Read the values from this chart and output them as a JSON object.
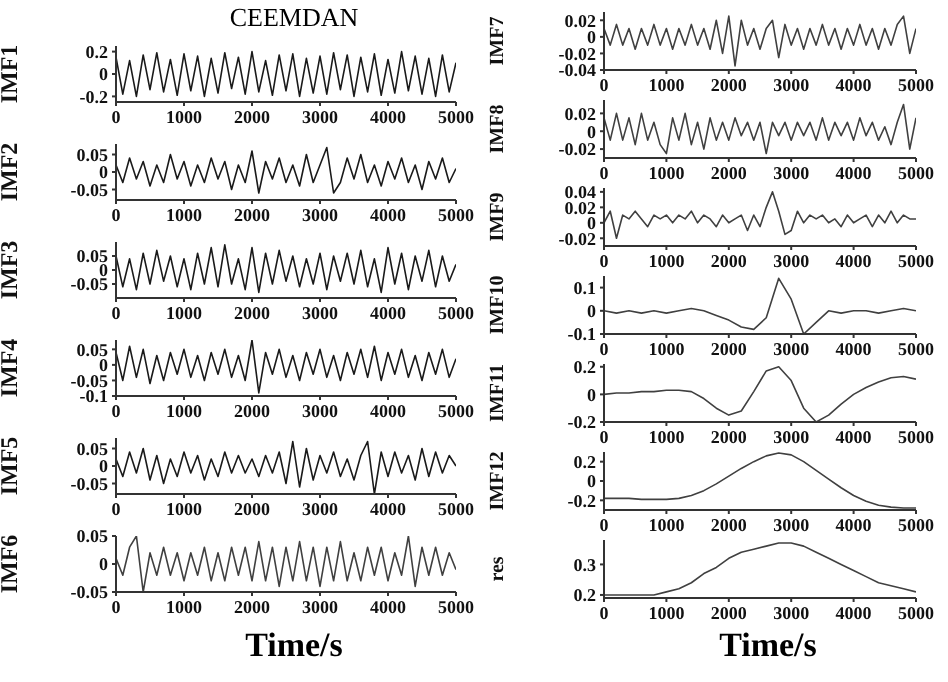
{
  "chart_data": [
    {
      "type": "line",
      "title": "CEEMDAN",
      "ylabel": "IMF1",
      "color": "#1a1a1a",
      "xlim": [
        0,
        5000
      ],
      "xticks": [
        0,
        1000,
        2000,
        3000,
        4000,
        5000
      ],
      "ylim": [
        -0.25,
        0.25
      ],
      "yticks": [
        -0.2,
        0,
        0.2
      ],
      "x": [
        0,
        100,
        200,
        300,
        400,
        500,
        600,
        700,
        800,
        900,
        1000,
        1100,
        1200,
        1300,
        1400,
        1500,
        1600,
        1700,
        1800,
        1900,
        2000,
        2100,
        2200,
        2300,
        2400,
        2500,
        2600,
        2700,
        2800,
        2900,
        3000,
        3100,
        3200,
        3300,
        3400,
        3500,
        3600,
        3700,
        3800,
        3900,
        4000,
        4100,
        4200,
        4300,
        4400,
        4500,
        4600,
        4700,
        4800,
        4900,
        5000
      ],
      "values": [
        0.15,
        -0.18,
        0.12,
        -0.2,
        0.17,
        -0.14,
        0.19,
        -0.16,
        0.13,
        -0.19,
        0.18,
        -0.15,
        0.16,
        -0.2,
        0.14,
        -0.17,
        0.19,
        -0.13,
        0.15,
        -0.18,
        0.2,
        -0.16,
        0.12,
        -0.19,
        0.17,
        -0.15,
        0.18,
        -0.2,
        0.14,
        -0.17,
        0.16,
        -0.18,
        0.19,
        -0.14,
        0.17,
        -0.2,
        0.15,
        -0.16,
        0.18,
        -0.19,
        0.13,
        -0.17,
        0.2,
        -0.15,
        0.16,
        -0.18,
        0.14,
        -0.2,
        0.17,
        -0.16,
        0.1
      ]
    },
    {
      "type": "line",
      "ylabel": "IMF2",
      "color": "#1a1a1a",
      "xlim": [
        0,
        5000
      ],
      "xticks": [
        0,
        1000,
        2000,
        3000,
        4000,
        5000
      ],
      "ylim": [
        -0.08,
        0.08
      ],
      "yticks": [
        -0.05,
        0,
        0.05
      ],
      "x": [
        0,
        100,
        200,
        300,
        400,
        500,
        600,
        700,
        800,
        900,
        1000,
        1100,
        1200,
        1300,
        1400,
        1500,
        1600,
        1700,
        1800,
        1900,
        2000,
        2100,
        2200,
        2300,
        2400,
        2500,
        2600,
        2700,
        2800,
        2900,
        3000,
        3100,
        3200,
        3300,
        3400,
        3500,
        3600,
        3700,
        3800,
        3900,
        4000,
        4100,
        4200,
        4300,
        4400,
        4500,
        4600,
        4700,
        4800,
        4900,
        5000
      ],
      "values": [
        0.02,
        -0.03,
        0.04,
        -0.02,
        0.03,
        -0.04,
        0.02,
        -0.03,
        0.05,
        -0.02,
        0.03,
        -0.04,
        0.02,
        -0.03,
        0.04,
        -0.02,
        0.03,
        -0.05,
        0.02,
        -0.03,
        0.06,
        -0.06,
        0.03,
        -0.02,
        0.04,
        -0.03,
        0.02,
        -0.04,
        0.05,
        -0.03,
        0.02,
        0.07,
        -0.06,
        -0.03,
        0.04,
        -0.02,
        0.05,
        -0.03,
        0.02,
        -0.04,
        0.03,
        -0.02,
        0.04,
        -0.03,
        0.02,
        -0.05,
        0.03,
        -0.02,
        0.04,
        -0.03,
        0.01
      ]
    },
    {
      "type": "line",
      "ylabel": "IMF3",
      "color": "#1a1a1a",
      "xlim": [
        0,
        5000
      ],
      "xticks": [
        0,
        1000,
        2000,
        3000,
        4000,
        5000
      ],
      "ylim": [
        -0.1,
        0.1
      ],
      "yticks": [
        -0.05,
        0,
        0.05
      ],
      "x": [
        0,
        100,
        200,
        300,
        400,
        500,
        600,
        700,
        800,
        900,
        1000,
        1100,
        1200,
        1300,
        1400,
        1500,
        1600,
        1700,
        1800,
        1900,
        2000,
        2100,
        2200,
        2300,
        2400,
        2500,
        2600,
        2700,
        2800,
        2900,
        3000,
        3100,
        3200,
        3300,
        3400,
        3500,
        3600,
        3700,
        3800,
        3900,
        4000,
        4100,
        4200,
        4300,
        4400,
        4500,
        4600,
        4700,
        4800,
        4900,
        5000
      ],
      "values": [
        0.05,
        -0.06,
        0.04,
        -0.07,
        0.06,
        -0.05,
        0.07,
        -0.04,
        0.05,
        -0.06,
        0.04,
        -0.07,
        0.06,
        -0.05,
        0.08,
        -0.06,
        0.09,
        -0.05,
        0.04,
        -0.07,
        0.08,
        -0.08,
        0.06,
        -0.05,
        0.07,
        -0.04,
        0.05,
        -0.06,
        0.04,
        -0.05,
        0.06,
        -0.07,
        0.05,
        -0.04,
        0.06,
        -0.05,
        0.07,
        -0.06,
        0.04,
        -0.08,
        0.08,
        -0.05,
        0.06,
        -0.07,
        0.05,
        -0.04,
        0.07,
        -0.06,
        0.05,
        -0.04,
        0.02
      ]
    },
    {
      "type": "line",
      "ylabel": "IMF4",
      "color": "#1a1a1a",
      "xlim": [
        0,
        5000
      ],
      "xticks": [
        0,
        1000,
        2000,
        3000,
        4000,
        5000
      ],
      "ylim": [
        -0.1,
        0.08
      ],
      "yticks": [
        -0.1,
        -0.05,
        0,
        0.05
      ],
      "x": [
        0,
        100,
        200,
        300,
        400,
        500,
        600,
        700,
        800,
        900,
        1000,
        1100,
        1200,
        1300,
        1400,
        1500,
        1600,
        1700,
        1800,
        1900,
        2000,
        2100,
        2200,
        2300,
        2400,
        2500,
        2600,
        2700,
        2800,
        2900,
        3000,
        3100,
        3200,
        3300,
        3400,
        3500,
        3600,
        3700,
        3800,
        3900,
        4000,
        4100,
        4200,
        4300,
        4400,
        4500,
        4600,
        4700,
        4800,
        4900,
        5000
      ],
      "values": [
        0.04,
        -0.05,
        0.06,
        -0.04,
        0.05,
        -0.06,
        0.03,
        -0.05,
        0.04,
        -0.03,
        0.05,
        -0.04,
        0.03,
        -0.05,
        0.04,
        -0.03,
        0.05,
        -0.04,
        0.03,
        -0.05,
        0.08,
        -0.09,
        0.04,
        -0.03,
        0.05,
        -0.04,
        0.03,
        -0.05,
        0.04,
        -0.03,
        0.05,
        -0.04,
        0.03,
        -0.05,
        0.04,
        -0.03,
        0.05,
        -0.04,
        0.06,
        -0.05,
        0.04,
        -0.03,
        0.05,
        -0.04,
        0.03,
        -0.05,
        0.04,
        -0.03,
        0.05,
        -0.04,
        0.02
      ]
    },
    {
      "type": "line",
      "ylabel": "IMF5",
      "color": "#1a1a1a",
      "xlim": [
        0,
        5000
      ],
      "xticks": [
        0,
        1000,
        2000,
        3000,
        4000,
        5000
      ],
      "ylim": [
        -0.08,
        0.08
      ],
      "yticks": [
        -0.05,
        0,
        0.05
      ],
      "x": [
        0,
        100,
        200,
        300,
        400,
        500,
        600,
        700,
        800,
        900,
        1000,
        1100,
        1200,
        1300,
        1400,
        1500,
        1600,
        1700,
        1800,
        1900,
        2000,
        2100,
        2200,
        2300,
        2400,
        2500,
        2600,
        2700,
        2800,
        2900,
        3000,
        3100,
        3200,
        3300,
        3400,
        3500,
        3600,
        3700,
        3800,
        3900,
        4000,
        4100,
        4200,
        4300,
        4400,
        4500,
        4600,
        4700,
        4800,
        4900,
        5000
      ],
      "values": [
        0.02,
        -0.03,
        0.04,
        -0.02,
        0.05,
        -0.04,
        0.03,
        -0.05,
        0.02,
        -0.03,
        0.04,
        -0.02,
        0.03,
        -0.04,
        0.02,
        -0.03,
        0.04,
        -0.02,
        0.03,
        -0.02,
        0.02,
        -0.03,
        0.03,
        -0.02,
        0.04,
        -0.05,
        0.07,
        -0.06,
        0.05,
        -0.04,
        0.03,
        -0.02,
        0.04,
        -0.03,
        0.02,
        -0.04,
        0.03,
        0.07,
        -0.08,
        0.04,
        -0.03,
        0.04,
        -0.02,
        0.03,
        -0.04,
        0.05,
        -0.03,
        0.04,
        -0.02,
        0.03,
        0
      ]
    },
    {
      "type": "line",
      "ylabel": "IMF6",
      "xlabel": "Time/s",
      "color": "#404040",
      "xlim": [
        0,
        5000
      ],
      "xticks": [
        0,
        1000,
        2000,
        3000,
        4000,
        5000
      ],
      "ylim": [
        -0.05,
        0.05
      ],
      "yticks": [
        -0.05,
        0,
        0.05
      ],
      "x": [
        0,
        100,
        200,
        300,
        400,
        500,
        600,
        700,
        800,
        900,
        1000,
        1100,
        1200,
        1300,
        1400,
        1500,
        1600,
        1700,
        1800,
        1900,
        2000,
        2100,
        2200,
        2300,
        2400,
        2500,
        2600,
        2700,
        2800,
        2900,
        3000,
        3100,
        3200,
        3300,
        3400,
        3500,
        3600,
        3700,
        3800,
        3900,
        4000,
        4100,
        4200,
        4300,
        4400,
        4500,
        4600,
        4700,
        4800,
        4900,
        5000
      ],
      "values": [
        0.01,
        -0.02,
        0.03,
        0.05,
        -0.05,
        0.02,
        -0.02,
        0.03,
        -0.02,
        0.02,
        -0.03,
        0.02,
        -0.02,
        0.03,
        -0.03,
        0.02,
        -0.03,
        0.03,
        -0.02,
        0.03,
        -0.03,
        0.04,
        -0.03,
        0.03,
        -0.04,
        0.03,
        -0.03,
        0.04,
        -0.03,
        0.03,
        -0.04,
        0.03,
        -0.03,
        0.04,
        -0.03,
        0.02,
        -0.03,
        0.03,
        -0.02,
        0.03,
        -0.03,
        0.02,
        -0.02,
        0.05,
        -0.04,
        0.03,
        -0.02,
        0.03,
        -0.02,
        0.02,
        -0.01
      ]
    },
    {
      "type": "line",
      "ylabel": "IMF7",
      "color": "#404040",
      "xlim": [
        0,
        5000
      ],
      "xticks": [
        0,
        1000,
        2000,
        3000,
        4000,
        5000
      ],
      "ylim": [
        -0.04,
        0.03
      ],
      "yticks": [
        -0.04,
        -0.02,
        0,
        0.02
      ],
      "x": [
        0,
        100,
        200,
        300,
        400,
        500,
        600,
        700,
        800,
        900,
        1000,
        1100,
        1200,
        1300,
        1400,
        1500,
        1600,
        1700,
        1800,
        1900,
        2000,
        2100,
        2200,
        2300,
        2400,
        2500,
        2600,
        2700,
        2800,
        2900,
        3000,
        3100,
        3200,
        3300,
        3400,
        3500,
        3600,
        3700,
        3800,
        3900,
        4000,
        4100,
        4200,
        4300,
        4400,
        4500,
        4600,
        4700,
        4800,
        4900,
        5000
      ],
      "values": [
        0.01,
        -0.01,
        0.015,
        -0.01,
        0.01,
        -0.015,
        0.01,
        -0.01,
        0.015,
        -0.01,
        0.01,
        -0.015,
        0.01,
        -0.01,
        0.015,
        -0.01,
        0.01,
        -0.015,
        0.02,
        -0.02,
        0.025,
        -0.035,
        0.02,
        -0.01,
        0.01,
        -0.015,
        0.01,
        0.02,
        -0.025,
        0.015,
        -0.01,
        0.01,
        -0.015,
        0.01,
        -0.01,
        0.015,
        -0.01,
        0.01,
        -0.015,
        0.01,
        -0.01,
        0.015,
        -0.01,
        0.01,
        -0.015,
        0.01,
        -0.01,
        0.015,
        0.025,
        -0.02,
        0.01
      ]
    },
    {
      "type": "line",
      "ylabel": "IMF8",
      "color": "#404040",
      "xlim": [
        0,
        5000
      ],
      "xticks": [
        0,
        1000,
        2000,
        3000,
        4000,
        5000
      ],
      "ylim": [
        -0.03,
        0.035
      ],
      "yticks": [
        -0.02,
        0,
        0.02
      ],
      "x": [
        0,
        100,
        200,
        300,
        400,
        500,
        600,
        700,
        800,
        900,
        1000,
        1100,
        1200,
        1300,
        1400,
        1500,
        1600,
        1700,
        1800,
        1900,
        2000,
        2100,
        2200,
        2300,
        2400,
        2500,
        2600,
        2700,
        2800,
        2900,
        3000,
        3100,
        3200,
        3300,
        3400,
        3500,
        3600,
        3700,
        3800,
        3900,
        4000,
        4100,
        4200,
        4300,
        4400,
        4500,
        4600,
        4700,
        4800,
        4900,
        5000
      ],
      "values": [
        0.015,
        -0.01,
        0.02,
        -0.01,
        0.015,
        -0.015,
        0.02,
        -0.01,
        0.01,
        -0.015,
        -0.025,
        0.015,
        -0.01,
        0.02,
        -0.015,
        0.01,
        -0.02,
        0.015,
        -0.01,
        0.01,
        -0.01,
        0.015,
        -0.005,
        0.01,
        -0.01,
        0.01,
        -0.025,
        0.01,
        -0.005,
        0.01,
        -0.01,
        0.01,
        -0.005,
        0.01,
        -0.01,
        0.015,
        -0.01,
        0.01,
        -0.005,
        0.01,
        -0.01,
        0.015,
        -0.005,
        0.01,
        -0.01,
        0.005,
        -0.015,
        0.01,
        0.03,
        -0.02,
        0.015
      ]
    },
    {
      "type": "line",
      "ylabel": "IMF9",
      "color": "#404040",
      "xlim": [
        0,
        5000
      ],
      "xticks": [
        0,
        1000,
        2000,
        3000,
        4000,
        5000
      ],
      "ylim": [
        -0.03,
        0.045
      ],
      "yticks": [
        -0.02,
        0,
        0.02,
        0.04
      ],
      "x": [
        0,
        100,
        200,
        300,
        400,
        500,
        600,
        700,
        800,
        900,
        1000,
        1100,
        1200,
        1300,
        1400,
        1500,
        1600,
        1700,
        1800,
        1900,
        2000,
        2100,
        2200,
        2300,
        2400,
        2500,
        2600,
        2700,
        2800,
        2900,
        3000,
        3100,
        3200,
        3300,
        3400,
        3500,
        3600,
        3700,
        3800,
        3900,
        4000,
        4100,
        4200,
        4300,
        4400,
        4500,
        4600,
        4700,
        4800,
        4900,
        5000
      ],
      "values": [
        0,
        0.015,
        -0.02,
        0.01,
        0.005,
        0.015,
        0.005,
        -0.005,
        0.01,
        0.005,
        0.01,
        0,
        0.01,
        0.005,
        0.015,
        0,
        0.01,
        0.005,
        -0.005,
        0.01,
        0,
        0.005,
        0.01,
        -0.01,
        0.01,
        -0.005,
        0.02,
        0.04,
        0.015,
        -0.015,
        -0.01,
        0.015,
        0,
        0.01,
        0.005,
        0.01,
        0,
        0.005,
        -0.005,
        0.01,
        0,
        0.005,
        0.01,
        -0.005,
        0.01,
        0,
        0.015,
        0,
        0.01,
        0.005,
        0.005
      ]
    },
    {
      "type": "line",
      "ylabel": "IMF10",
      "color": "#404040",
      "xlim": [
        0,
        5000
      ],
      "xticks": [
        0,
        1000,
        2000,
        3000,
        4000,
        5000
      ],
      "ylim": [
        -0.1,
        0.15
      ],
      "yticks": [
        -0.1,
        0,
        0.1
      ],
      "x": [
        0,
        200,
        400,
        600,
        800,
        1000,
        1200,
        1400,
        1600,
        1800,
        2000,
        2200,
        2400,
        2600,
        2800,
        3000,
        3200,
        3400,
        3600,
        3800,
        4000,
        4200,
        4400,
        4600,
        4800,
        5000
      ],
      "values": [
        0,
        -0.01,
        0,
        -0.01,
        0,
        -0.01,
        0,
        0.01,
        0,
        -0.02,
        -0.04,
        -0.07,
        -0.08,
        -0.03,
        0.14,
        0.05,
        -0.1,
        -0.05,
        0,
        -0.01,
        0,
        0,
        -0.01,
        0,
        0.01,
        0
      ]
    },
    {
      "type": "line",
      "ylabel": "IMF11",
      "color": "#404040",
      "xlim": [
        0,
        5000
      ],
      "xticks": [
        0,
        1000,
        2000,
        3000,
        4000,
        5000
      ],
      "ylim": [
        -0.2,
        0.22
      ],
      "yticks": [
        -0.2,
        0,
        0.2
      ],
      "x": [
        0,
        200,
        400,
        600,
        800,
        1000,
        1200,
        1400,
        1600,
        1800,
        2000,
        2200,
        2400,
        2600,
        2800,
        3000,
        3200,
        3400,
        3600,
        3800,
        4000,
        4200,
        4400,
        4600,
        4800,
        5000
      ],
      "values": [
        0,
        0.01,
        0.01,
        0.02,
        0.02,
        0.03,
        0.03,
        0.02,
        -0.03,
        -0.1,
        -0.15,
        -0.12,
        0.02,
        0.17,
        0.2,
        0.1,
        -0.1,
        -0.2,
        -0.15,
        -0.07,
        0,
        0.05,
        0.09,
        0.12,
        0.13,
        0.11
      ]
    },
    {
      "type": "line",
      "ylabel": "IMF12",
      "color": "#404040",
      "xlim": [
        0,
        5000
      ],
      "xticks": [
        0,
        1000,
        2000,
        3000,
        4000,
        5000
      ],
      "ylim": [
        -0.3,
        0.3
      ],
      "yticks": [
        -0.2,
        0,
        0.2
      ],
      "x": [
        0,
        200,
        400,
        600,
        800,
        1000,
        1200,
        1400,
        1600,
        1800,
        2000,
        2200,
        2400,
        2600,
        2800,
        3000,
        3200,
        3400,
        3600,
        3800,
        4000,
        4200,
        4400,
        4600,
        4800,
        5000
      ],
      "values": [
        -0.18,
        -0.18,
        -0.18,
        -0.19,
        -0.19,
        -0.19,
        -0.18,
        -0.15,
        -0.1,
        -0.03,
        0.05,
        0.13,
        0.2,
        0.26,
        0.29,
        0.27,
        0.2,
        0.11,
        0.02,
        -0.07,
        -0.15,
        -0.21,
        -0.25,
        -0.27,
        -0.28,
        -0.28
      ]
    },
    {
      "type": "line",
      "ylabel": "res",
      "xlabel": "Time/s",
      "color": "#404040",
      "xlim": [
        0,
        5000
      ],
      "xticks": [
        0,
        1000,
        2000,
        3000,
        4000,
        5000
      ],
      "ylim": [
        0.19,
        0.38
      ],
      "yticks": [
        0.2,
        0.3
      ],
      "x": [
        0,
        200,
        400,
        600,
        800,
        1000,
        1200,
        1400,
        1600,
        1800,
        2000,
        2200,
        2400,
        2600,
        2800,
        3000,
        3200,
        3400,
        3600,
        3800,
        4000,
        4200,
        4400,
        4600,
        4800,
        5000
      ],
      "values": [
        0.2,
        0.2,
        0.2,
        0.2,
        0.2,
        0.21,
        0.22,
        0.24,
        0.27,
        0.29,
        0.32,
        0.34,
        0.35,
        0.36,
        0.37,
        0.37,
        0.36,
        0.34,
        0.32,
        0.3,
        0.28,
        0.26,
        0.24,
        0.23,
        0.22,
        0.21
      ]
    }
  ]
}
